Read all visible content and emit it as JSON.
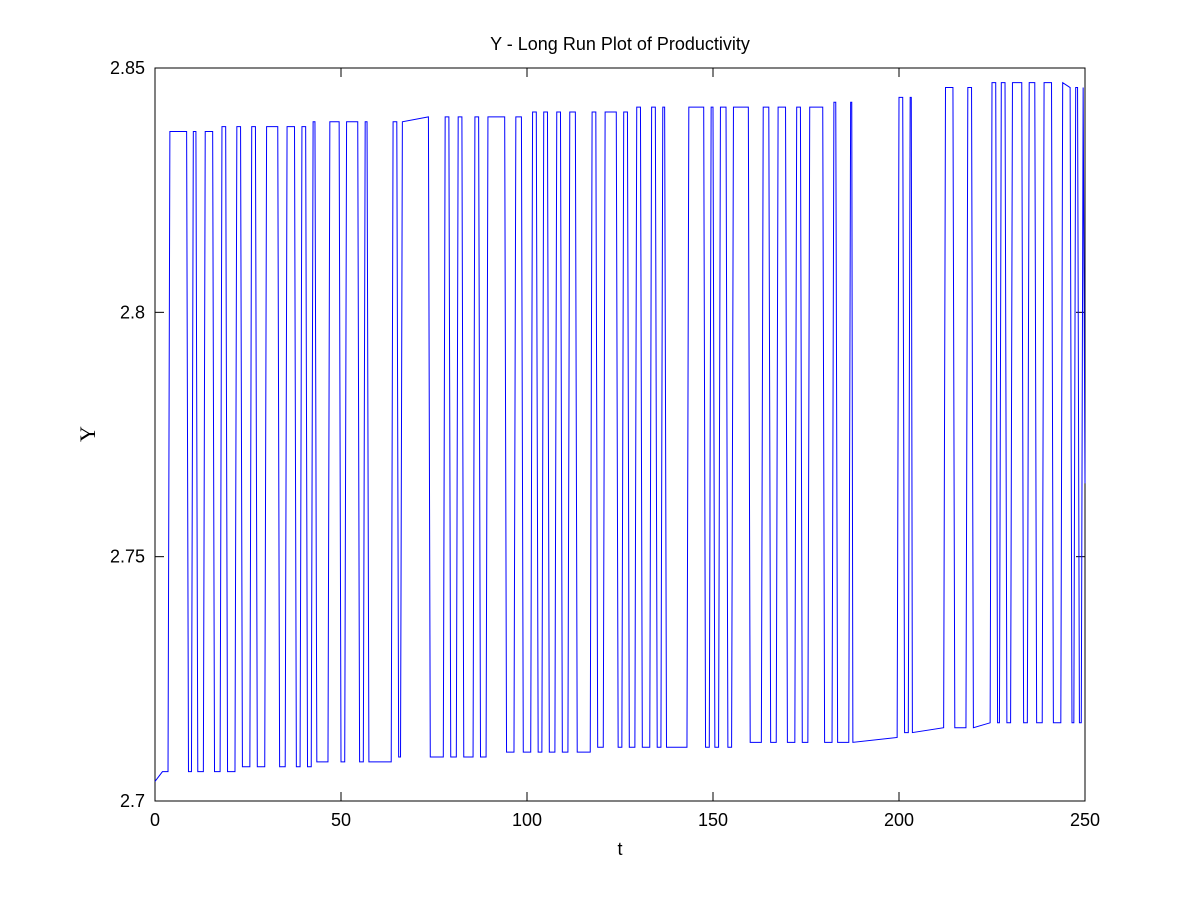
{
  "chart_data": {
    "type": "line",
    "title": "Y - Long Run Plot of Productivity",
    "xlabel": "t",
    "ylabel": "Y",
    "xlim": [
      0,
      250
    ],
    "ylim": [
      2.7,
      2.85
    ],
    "xticks": [
      0,
      50,
      100,
      150,
      200,
      250
    ],
    "yticks": [
      2.7,
      2.75,
      2.8,
      2.85
    ],
    "series": [
      {
        "color": "#0000ff",
        "x": [
          0,
          2,
          3.5,
          4,
          8.5,
          9,
          9.8,
          10.3,
          11,
          11.5,
          13,
          13.5,
          15.5,
          16,
          17.5,
          18,
          19,
          19.5,
          21.5,
          22,
          23,
          23.5,
          25.5,
          26,
          27,
          27.5,
          29.5,
          30,
          33,
          33.5,
          35,
          35.5,
          37.5,
          38,
          39,
          39.5,
          40.5,
          41,
          42,
          42.5,
          43,
          43.5,
          46.5,
          47,
          49.5,
          50,
          51,
          51.5,
          54.5,
          55,
          56,
          56.5,
          57,
          57.5,
          63.5,
          64,
          65,
          65.5,
          66,
          66.5,
          73.5,
          74,
          77.5,
          78,
          79,
          79.5,
          81,
          81.5,
          82.5,
          83,
          85.5,
          86,
          87,
          87.5,
          89,
          89.5,
          94,
          94.5,
          96.5,
          97,
          98.5,
          99,
          101,
          101.5,
          102.5,
          103,
          104,
          104.5,
          105.5,
          106,
          107.5,
          108,
          109,
          109.5,
          111,
          111.5,
          113,
          113.5,
          117,
          117.5,
          118.5,
          119,
          120.5,
          121,
          124,
          124.5,
          125.5,
          126,
          127,
          127.5,
          129,
          129.5,
          130.5,
          131,
          133,
          133.5,
          134.5,
          135,
          136,
          136.5,
          137,
          137.5,
          143,
          143.5,
          147.5,
          148,
          149,
          149.5,
          150,
          150.5,
          151.5,
          152,
          153.5,
          154,
          155,
          155.5,
          159.5,
          160,
          163,
          163.5,
          165,
          165.5,
          167,
          167.5,
          169.5,
          170,
          172,
          172.5,
          173.5,
          174,
          175.5,
          176,
          179.5,
          180,
          182,
          182.5,
          183,
          183.5,
          186.5,
          187,
          187.3,
          187.6,
          199.5,
          200,
          201,
          201.5,
          202.5,
          203,
          203.3,
          203.6,
          212,
          212.5,
          214.5,
          215,
          218,
          218.5,
          219.5,
          220,
          224.5,
          225,
          226,
          226.5,
          227,
          227.5,
          228.5,
          229,
          230,
          230.5,
          233,
          233.5,
          234.5,
          235,
          236.5,
          237,
          238.5,
          239,
          241,
          241.5,
          243.5,
          244,
          246,
          246.5,
          247,
          247.5,
          248,
          248.5,
          249,
          249.5,
          250
        ],
        "values": [
          2.704,
          2.706,
          2.706,
          2.837,
          2.837,
          2.706,
          2.706,
          2.837,
          2.837,
          2.706,
          2.706,
          2.837,
          2.837,
          2.706,
          2.706,
          2.838,
          2.838,
          2.706,
          2.706,
          2.838,
          2.838,
          2.707,
          2.707,
          2.838,
          2.838,
          2.707,
          2.707,
          2.838,
          2.838,
          2.707,
          2.707,
          2.838,
          2.838,
          2.707,
          2.707,
          2.838,
          2.838,
          2.707,
          2.707,
          2.839,
          2.839,
          2.708,
          2.708,
          2.839,
          2.839,
          2.708,
          2.708,
          2.839,
          2.839,
          2.708,
          2.708,
          2.839,
          2.839,
          2.708,
          2.708,
          2.839,
          2.839,
          2.709,
          2.709,
          2.839,
          2.84,
          2.709,
          2.709,
          2.84,
          2.84,
          2.709,
          2.709,
          2.84,
          2.84,
          2.709,
          2.709,
          2.84,
          2.84,
          2.709,
          2.709,
          2.84,
          2.84,
          2.71,
          2.71,
          2.84,
          2.84,
          2.71,
          2.71,
          2.841,
          2.841,
          2.71,
          2.71,
          2.841,
          2.841,
          2.71,
          2.71,
          2.841,
          2.841,
          2.71,
          2.71,
          2.841,
          2.841,
          2.71,
          2.71,
          2.841,
          2.841,
          2.711,
          2.711,
          2.841,
          2.841,
          2.711,
          2.711,
          2.841,
          2.841,
          2.711,
          2.711,
          2.842,
          2.842,
          2.711,
          2.711,
          2.842,
          2.842,
          2.711,
          2.711,
          2.842,
          2.842,
          2.711,
          2.711,
          2.842,
          2.842,
          2.711,
          2.711,
          2.842,
          2.842,
          2.711,
          2.711,
          2.842,
          2.842,
          2.711,
          2.711,
          2.842,
          2.842,
          2.712,
          2.712,
          2.842,
          2.842,
          2.712,
          2.712,
          2.842,
          2.842,
          2.712,
          2.712,
          2.842,
          2.842,
          2.712,
          2.712,
          2.842,
          2.842,
          2.712,
          2.712,
          2.843,
          2.843,
          2.712,
          2.712,
          2.843,
          2.843,
          2.712,
          2.713,
          2.844,
          2.844,
          2.714,
          2.714,
          2.844,
          2.844,
          2.714,
          2.715,
          2.846,
          2.846,
          2.715,
          2.715,
          2.846,
          2.846,
          2.715,
          2.716,
          2.847,
          2.847,
          2.716,
          2.716,
          2.847,
          2.847,
          2.716,
          2.716,
          2.847,
          2.847,
          2.716,
          2.716,
          2.847,
          2.847,
          2.716,
          2.716,
          2.847,
          2.847,
          2.716,
          2.716,
          2.847,
          2.846,
          2.716,
          2.716,
          2.846,
          2.846,
          2.716,
          2.716,
          2.846,
          2.765
        ]
      }
    ]
  }
}
